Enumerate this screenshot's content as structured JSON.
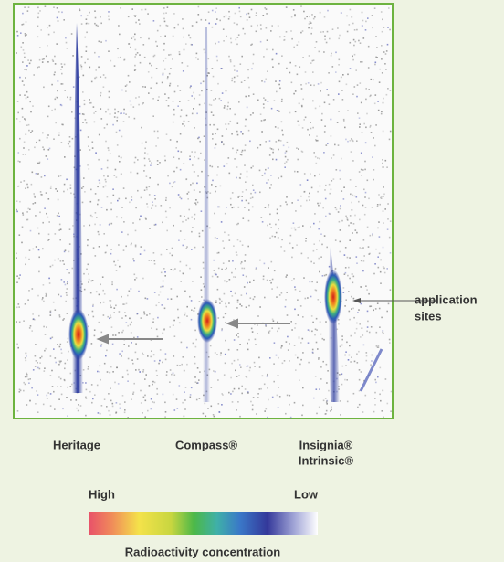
{
  "figure": {
    "lanes": [
      [
        "Heritage"
      ],
      [
        "Compass®"
      ],
      [
        "Insignia®",
        "Intrinsic®"
      ]
    ],
    "annotation": [
      "application",
      "sites"
    ],
    "legend": {
      "high": "High",
      "low": "Low",
      "caption": "Radioactivity concentration"
    }
  }
}
